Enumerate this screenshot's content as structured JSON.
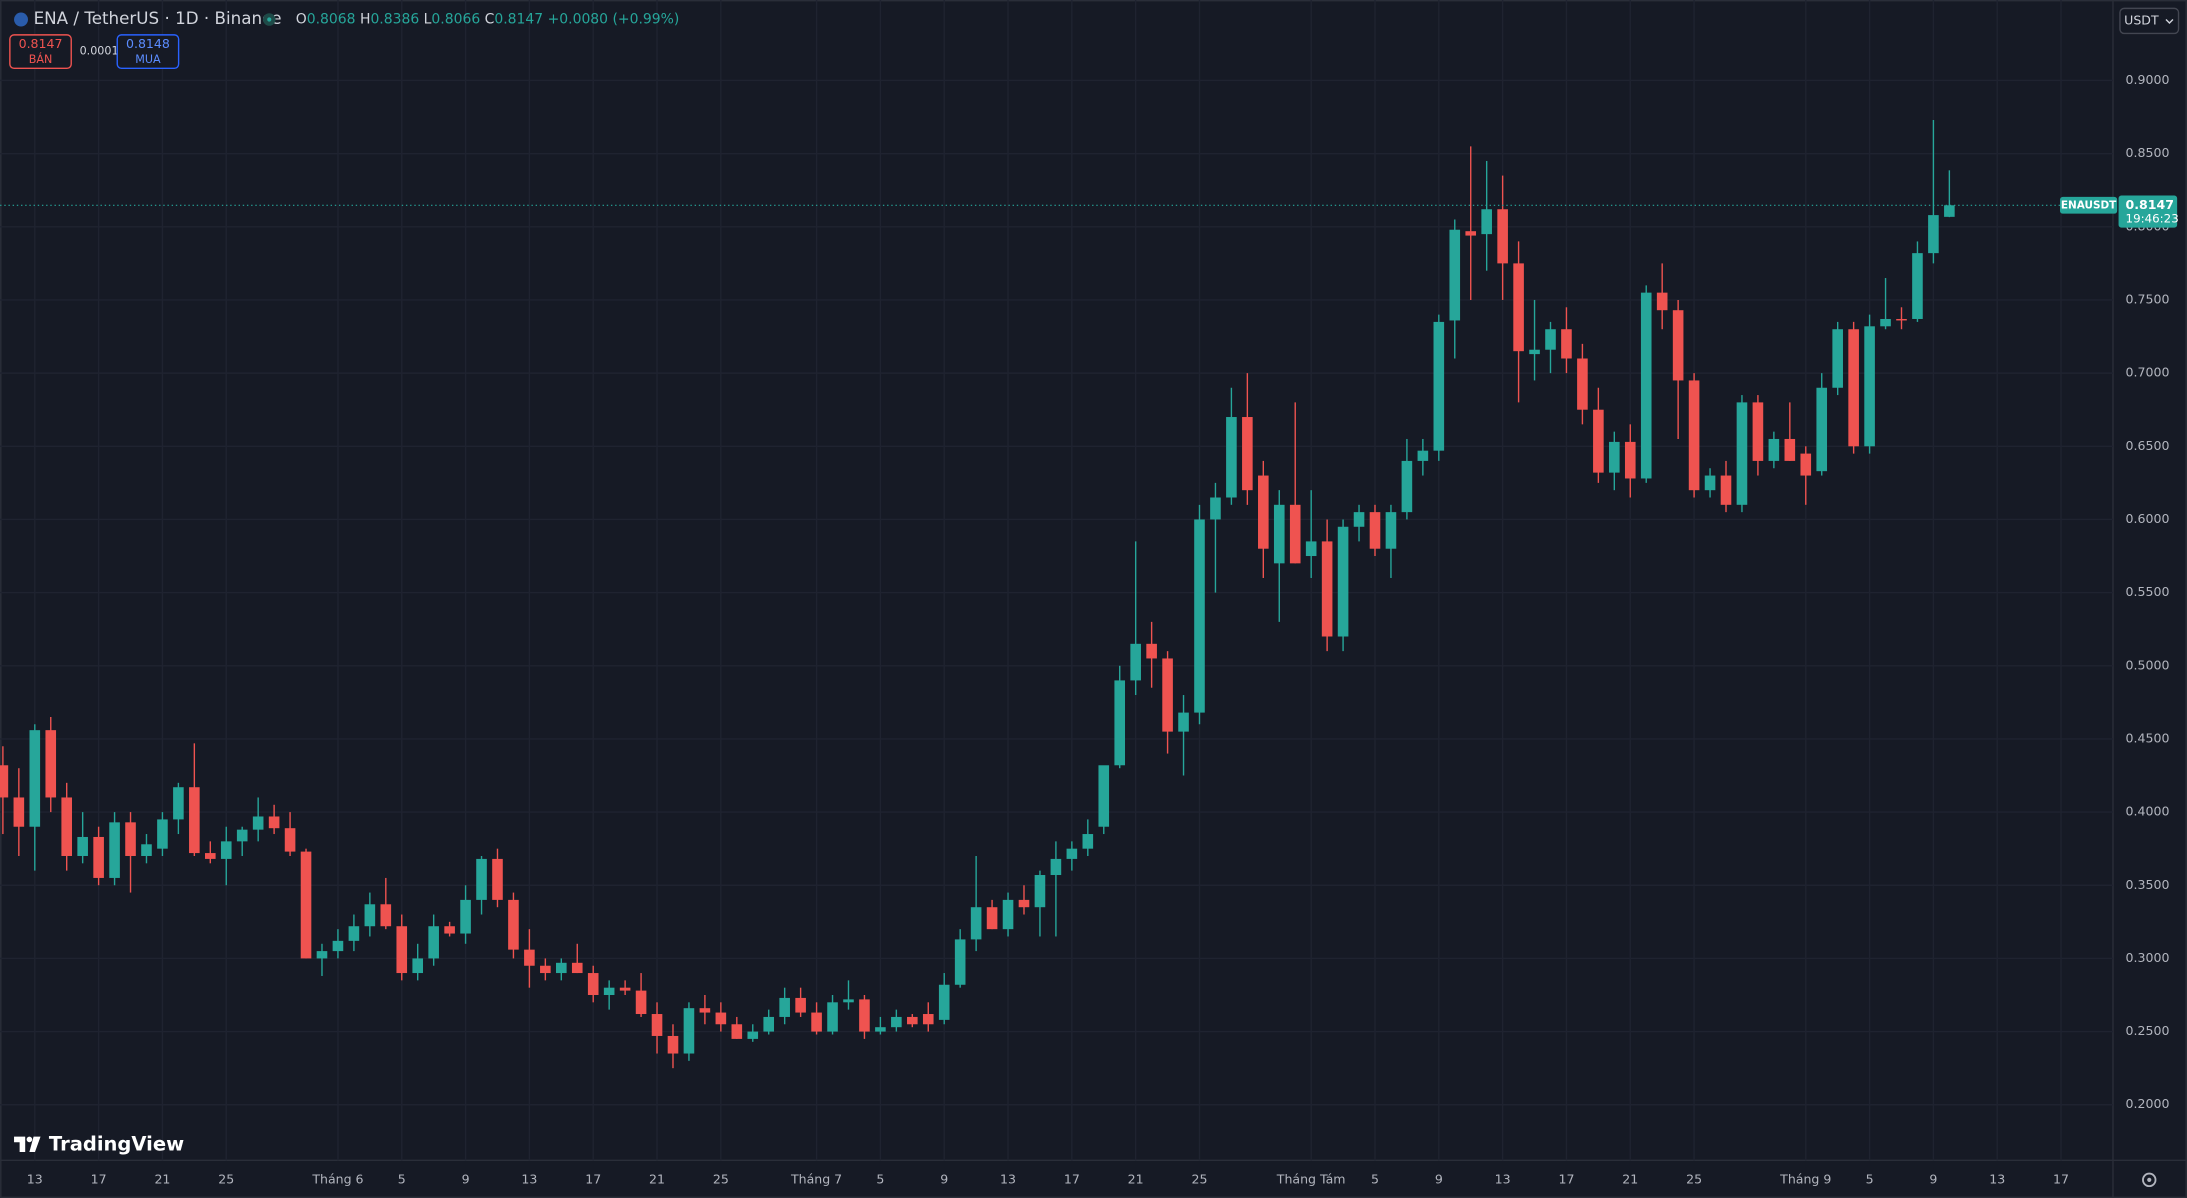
{
  "chart_data": {
    "type": "candlestick",
    "up_color": "#26a69a",
    "down_color": "#ef5350",
    "grid": true,
    "categories": [
      null,
      null,
      "13",
      null,
      null,
      null,
      "17",
      null,
      null,
      null,
      "21",
      null,
      null,
      null,
      "25",
      null,
      null,
      null,
      null,
      null,
      null,
      "Tháng 6",
      null,
      null,
      null,
      "5",
      null,
      null,
      null,
      "9",
      null,
      null,
      null,
      "13",
      null,
      null,
      null,
      "17",
      null,
      null,
      null,
      "21",
      null,
      null,
      null,
      "25",
      null,
      null,
      null,
      null,
      null,
      "Tháng 7",
      null,
      null,
      null,
      "5",
      null,
      null,
      null,
      "9",
      null,
      null,
      null,
      "13",
      null,
      null,
      null,
      "17",
      null,
      null,
      null,
      "21",
      null,
      null,
      null,
      "25",
      null,
      null,
      null,
      null,
      null,
      null,
      "Tháng Tám",
      null,
      null,
      null,
      "5",
      null,
      null,
      null,
      "9",
      null,
      null,
      null,
      "13",
      null,
      null,
      null,
      "17",
      null,
      null,
      null,
      "21",
      null,
      null,
      null,
      "25",
      null,
      null,
      null,
      null,
      null,
      null,
      "Tháng 9",
      null,
      null,
      null,
      "5",
      null,
      null,
      null,
      "9",
      null,
      null,
      null,
      "13",
      null,
      null,
      null,
      "17",
      null,
      null,
      null
    ],
    "open": [
      0.432,
      0.41,
      0.39,
      0.456,
      0.41,
      0.37,
      0.383,
      0.355,
      0.393,
      0.37,
      0.375,
      0.395,
      0.417,
      0.372,
      0.368,
      0.38,
      0.388,
      0.397,
      0.389,
      0.373,
      0.3,
      0.305,
      0.312,
      0.322,
      0.337,
      0.322,
      0.29,
      0.3,
      0.322,
      0.317,
      0.34,
      0.368,
      0.34,
      0.306,
      0.295,
      0.29,
      0.297,
      0.29,
      0.275,
      0.28,
      0.278,
      0.262,
      0.247,
      0.235,
      0.266,
      0.263,
      0.255,
      0.245,
      0.25,
      0.26,
      0.273,
      0.263,
      0.25,
      0.27,
      0.272,
      0.25,
      0.253,
      0.26,
      0.262,
      0.258,
      0.282,
      0.313,
      0.335,
      0.32,
      0.34,
      0.335,
      0.357,
      0.368,
      0.375,
      0.39,
      0.432,
      0.49,
      0.515,
      0.505,
      0.455,
      0.468,
      0.6,
      0.615,
      0.67,
      0.63,
      0.57,
      0.61,
      0.575,
      0.585,
      0.52,
      0.595,
      0.605,
      0.58,
      0.605,
      0.64,
      0.647,
      0.736,
      0.797,
      0.795,
      0.812,
      0.775,
      0.713,
      0.716,
      0.73,
      0.71,
      0.675,
      0.632,
      0.653,
      0.628,
      0.755,
      0.743,
      0.695,
      0.62,
      0.63,
      0.61,
      0.68,
      0.64,
      0.655,
      0.645,
      0.633,
      0.69,
      0.73,
      0.65,
      0.732,
      0.737,
      0.737,
      0.782,
      0.8068,
      null,
      null,
      null,
      null,
      null,
      null,
      null,
      null,
      null,
      null
    ],
    "high": [
      0.445,
      0.43,
      0.46,
      0.465,
      0.42,
      0.4,
      0.39,
      0.4,
      0.4,
      0.385,
      0.4,
      0.42,
      0.447,
      0.38,
      0.39,
      0.39,
      0.41,
      0.405,
      0.4,
      0.375,
      0.31,
      0.32,
      0.33,
      0.345,
      0.355,
      0.33,
      0.31,
      0.33,
      0.325,
      0.35,
      0.37,
      0.375,
      0.345,
      0.32,
      0.3,
      0.3,
      0.31,
      0.295,
      0.285,
      0.285,
      0.29,
      0.27,
      0.255,
      0.27,
      0.275,
      0.27,
      0.26,
      0.255,
      0.265,
      0.28,
      0.28,
      0.27,
      0.275,
      0.285,
      0.275,
      0.26,
      0.265,
      0.262,
      0.27,
      0.29,
      0.32,
      0.37,
      0.34,
      0.345,
      0.35,
      0.36,
      0.38,
      0.38,
      0.395,
      0.43,
      0.5,
      0.585,
      0.53,
      0.51,
      0.48,
      0.61,
      0.625,
      0.69,
      0.7,
      0.64,
      0.62,
      0.68,
      0.62,
      0.6,
      0.6,
      0.61,
      0.61,
      0.61,
      0.655,
      0.655,
      0.74,
      0.805,
      0.855,
      0.845,
      0.835,
      0.79,
      0.75,
      0.735,
      0.745,
      0.72,
      0.69,
      0.66,
      0.665,
      0.76,
      0.775,
      0.75,
      0.7,
      0.635,
      0.64,
      0.685,
      0.685,
      0.66,
      0.68,
      0.65,
      0.7,
      0.735,
      0.735,
      0.74,
      0.765,
      0.745,
      0.79,
      0.873,
      0.8386,
      null,
      null,
      null,
      null,
      null,
      null,
      null,
      null,
      null,
      null
    ],
    "low": [
      0.385,
      0.37,
      0.36,
      0.4,
      0.36,
      0.365,
      0.35,
      0.35,
      0.345,
      0.365,
      0.37,
      0.385,
      0.37,
      0.365,
      0.35,
      0.37,
      0.38,
      0.385,
      0.37,
      0.3,
      0.288,
      0.3,
      0.305,
      0.315,
      0.32,
      0.285,
      0.285,
      0.295,
      0.315,
      0.31,
      0.33,
      0.335,
      0.3,
      0.28,
      0.285,
      0.285,
      0.29,
      0.27,
      0.265,
      0.275,
      0.26,
      0.235,
      0.225,
      0.23,
      0.255,
      0.25,
      0.245,
      0.243,
      0.248,
      0.255,
      0.26,
      0.248,
      0.248,
      0.265,
      0.245,
      0.248,
      0.25,
      0.253,
      0.25,
      0.255,
      0.28,
      0.305,
      0.32,
      0.315,
      0.33,
      0.315,
      0.315,
      0.36,
      0.37,
      0.385,
      0.43,
      0.48,
      0.485,
      0.44,
      0.425,
      0.46,
      0.55,
      0.61,
      0.61,
      0.56,
      0.53,
      0.57,
      0.56,
      0.51,
      0.51,
      0.585,
      0.575,
      0.56,
      0.6,
      0.63,
      0.64,
      0.71,
      0.75,
      0.77,
      0.75,
      0.68,
      0.695,
      0.7,
      0.7,
      0.665,
      0.625,
      0.62,
      0.615,
      0.625,
      0.73,
      0.655,
      0.615,
      0.615,
      0.605,
      0.605,
      0.63,
      0.635,
      0.64,
      0.61,
      0.63,
      0.685,
      0.645,
      0.645,
      0.73,
      0.73,
      0.735,
      0.775,
      0.8066,
      null,
      null,
      null,
      null,
      null,
      null,
      null,
      null,
      null,
      null
    ],
    "close": [
      0.41,
      0.39,
      0.456,
      0.41,
      0.37,
      0.383,
      0.355,
      0.393,
      0.37,
      0.378,
      0.395,
      0.417,
      0.372,
      0.368,
      0.38,
      0.388,
      0.397,
      0.389,
      0.373,
      0.3,
      0.305,
      0.312,
      0.322,
      0.337,
      0.322,
      0.29,
      0.3,
      0.322,
      0.317,
      0.34,
      0.368,
      0.34,
      0.306,
      0.295,
      0.29,
      0.297,
      0.29,
      0.275,
      0.28,
      0.278,
      0.262,
      0.247,
      0.235,
      0.266,
      0.263,
      0.255,
      0.245,
      0.25,
      0.26,
      0.273,
      0.263,
      0.25,
      0.27,
      0.272,
      0.25,
      0.253,
      0.26,
      0.255,
      0.255,
      0.282,
      0.313,
      0.335,
      0.32,
      0.34,
      0.335,
      0.357,
      0.368,
      0.375,
      0.385,
      0.432,
      0.49,
      0.515,
      0.505,
      0.455,
      0.468,
      0.6,
      0.615,
      0.67,
      0.62,
      0.58,
      0.61,
      0.57,
      0.585,
      0.52,
      0.595,
      0.605,
      0.58,
      0.605,
      0.64,
      0.647,
      0.735,
      0.798,
      0.794,
      0.812,
      0.775,
      0.715,
      0.716,
      0.73,
      0.71,
      0.675,
      0.632,
      0.653,
      0.628,
      0.755,
      0.743,
      0.695,
      0.62,
      0.63,
      0.61,
      0.68,
      0.64,
      0.655,
      0.64,
      0.63,
      0.69,
      0.73,
      0.65,
      0.732,
      0.737,
      0.736,
      0.782,
      0.808,
      0.8147,
      null,
      null,
      null,
      null,
      null,
      null,
      null,
      null,
      null,
      null
    ],
    "ylim": [
      0.162,
      0.955
    ],
    "yticks": [
      {
        "value": 0.2,
        "label": "0.2000"
      },
      {
        "value": 0.25,
        "label": "0.2500"
      },
      {
        "value": 0.3,
        "label": "0.3000"
      },
      {
        "value": 0.35,
        "label": "0.3500"
      },
      {
        "value": 0.4,
        "label": "0.4000"
      },
      {
        "value": 0.45,
        "label": "0.4500"
      },
      {
        "value": 0.5,
        "label": "0.5000"
      },
      {
        "value": 0.55,
        "label": "0.5500"
      },
      {
        "value": 0.6,
        "label": "0.6000"
      },
      {
        "value": 0.65,
        "label": "0.6500"
      },
      {
        "value": 0.7,
        "label": "0.7000"
      },
      {
        "value": 0.75,
        "label": "0.7500"
      },
      {
        "value": 0.8,
        "label": "0.8000"
      },
      {
        "value": 0.85,
        "label": "0.8500"
      },
      {
        "value": 0.9,
        "label": "0.9000"
      }
    ]
  },
  "ui": {
    "symbol": "ENA / TetherUS · 1D · Binance",
    "ohlc_labels": [
      "O",
      "H",
      "L",
      "C"
    ],
    "change": "+0.0080 (+0.99%)",
    "sell": {
      "price": 0.8147,
      "label": "BÁN"
    },
    "spread": 0.0001,
    "buy": {
      "price": 0.8148,
      "label": "MUA"
    },
    "currency": "USDT",
    "ticker": "ENAUSDT",
    "countdown": "19:46:23",
    "brand": "TradingView"
  }
}
